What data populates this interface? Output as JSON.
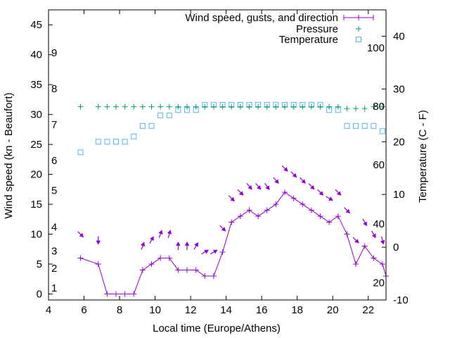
{
  "chart_data": {
    "type": "line",
    "xlabel": "Local time (Europe/Athens)",
    "ylabel": "Wind speed (kn - Beaufort)",
    "y2label": "Temperature (C - F)",
    "xlim": [
      4,
      23
    ],
    "ylim": [
      -1,
      47.5
    ],
    "y2lim": [
      -10,
      45
    ],
    "x_ticks": [
      4,
      6,
      8,
      10,
      12,
      14,
      16,
      18,
      20,
      22
    ],
    "y_ticks": [
      0,
      5,
      10,
      15,
      20,
      25,
      30,
      35,
      40,
      45
    ],
    "y2_ticks": [
      -10,
      0,
      10,
      20,
      30,
      40
    ],
    "beaufort_labels": [
      {
        "label": "1",
        "y": 1
      },
      {
        "label": "2",
        "y": 4.3
      },
      {
        "label": "3",
        "y": 7.2
      },
      {
        "label": "4",
        "y": 11.2
      },
      {
        "label": "5",
        "y": 17.3
      },
      {
        "label": "6",
        "y": 22.3
      },
      {
        "label": "7",
        "y": 28.3
      },
      {
        "label": "8",
        "y": 34.3
      },
      {
        "label": "9",
        "y": 40.3
      }
    ],
    "fahrenheit_labels": [
      {
        "label": "20",
        "y2": -6.7
      },
      {
        "label": "40",
        "y2": 4.4
      },
      {
        "label": "60",
        "y2": 15.6
      },
      {
        "label": "80",
        "y2": 26.7
      },
      {
        "label": "100",
        "y2": 37.8
      }
    ],
    "legend": {
      "position": "top-right",
      "entries": [
        "Wind speed, gusts, and direction",
        "Pressure",
        "Temperature"
      ]
    },
    "colors": {
      "wind": "#9400d3",
      "pressure": "#009e73",
      "temperature": "#56b4e9"
    },
    "wind": {
      "name": "Wind speed, gusts, and direction",
      "points": [
        {
          "x": 5.8,
          "y": 6,
          "gust": 10,
          "dir": 315
        },
        {
          "x": 6.8,
          "y": 5,
          "gust": 9,
          "dir": 360
        },
        {
          "x": 7.3,
          "y": 0
        },
        {
          "x": 7.8,
          "y": 0
        },
        {
          "x": 8.3,
          "y": 0
        },
        {
          "x": 8.8,
          "y": 0
        },
        {
          "x": 9.3,
          "y": 4,
          "gust": 8,
          "dir": 200
        },
        {
          "x": 9.8,
          "y": 5,
          "gust": 9,
          "dir": 210
        },
        {
          "x": 10.3,
          "y": 6,
          "gust": 10,
          "dir": 200
        },
        {
          "x": 10.8,
          "y": 6,
          "gust": 10,
          "dir": 195
        },
        {
          "x": 11.3,
          "y": 4,
          "gust": 8,
          "dir": 180
        },
        {
          "x": 11.8,
          "y": 4,
          "gust": 8,
          "dir": 180
        },
        {
          "x": 12.3,
          "y": 4,
          "gust": 8,
          "dir": 210
        },
        {
          "x": 12.8,
          "y": 3,
          "gust": 7,
          "dir": 240
        },
        {
          "x": 13.3,
          "y": 3,
          "gust": 7,
          "dir": 240
        },
        {
          "x": 13.8,
          "y": 7,
          "gust": 11,
          "dir": 315
        },
        {
          "x": 14.3,
          "y": 12,
          "gust": 16,
          "dir": 315
        },
        {
          "x": 14.8,
          "y": 13,
          "gust": 17,
          "dir": 315
        },
        {
          "x": 15.3,
          "y": 14,
          "gust": 18,
          "dir": 320
        },
        {
          "x": 15.8,
          "y": 13,
          "gust": 18,
          "dir": 320
        },
        {
          "x": 16.3,
          "y": 14,
          "gust": 18,
          "dir": 325
        },
        {
          "x": 16.8,
          "y": 15,
          "gust": 19,
          "dir": 320
        },
        {
          "x": 17.3,
          "y": 17,
          "gust": 21,
          "dir": 315
        },
        {
          "x": 17.8,
          "y": 16,
          "gust": 20,
          "dir": 315
        },
        {
          "x": 18.3,
          "y": 15,
          "gust": 19,
          "dir": 315
        },
        {
          "x": 18.8,
          "y": 14,
          "gust": 18,
          "dir": 315
        },
        {
          "x": 19.3,
          "y": 13,
          "gust": 17,
          "dir": 315
        },
        {
          "x": 19.8,
          "y": 12,
          "gust": 16,
          "dir": 300
        },
        {
          "x": 20.3,
          "y": 13,
          "gust": 17,
          "dir": 315
        },
        {
          "x": 20.8,
          "y": 10,
          "gust": 14,
          "dir": 315
        },
        {
          "x": 21.3,
          "y": 5,
          "gust": 9,
          "dir": 315
        },
        {
          "x": 21.8,
          "y": 8,
          "gust": 12,
          "dir": 330
        },
        {
          "x": 22.3,
          "y": 6,
          "gust": 10,
          "dir": 330
        },
        {
          "x": 22.8,
          "y": 5,
          "gust": 9,
          "dir": 345
        },
        {
          "x": 23.0,
          "y": 3
        }
      ]
    },
    "pressure": {
      "name": "Pressure",
      "x": [
        5.8,
        6.8,
        7.3,
        7.8,
        8.3,
        8.8,
        9.3,
        9.8,
        10.3,
        10.8,
        11.3,
        11.8,
        12.3,
        12.8,
        13.3,
        13.8,
        14.3,
        14.8,
        15.3,
        15.8,
        16.3,
        16.8,
        17.3,
        17.8,
        18.3,
        18.8,
        19.3,
        19.8,
        20.3,
        20.8,
        21.3,
        21.8,
        22.3,
        22.8
      ],
      "y": [
        31.3,
        31.3,
        31.3,
        31.3,
        31.3,
        31.3,
        31.3,
        31.3,
        31.3,
        31.3,
        31.3,
        31.3,
        31.3,
        31.3,
        31.3,
        31.3,
        31.3,
        31.3,
        31.3,
        31.3,
        31.3,
        31.3,
        31.3,
        31.3,
        31.3,
        31.3,
        31.3,
        31.3,
        31.3,
        31.0,
        31.0,
        31.0,
        31.3,
        31.3
      ]
    },
    "temperature": {
      "name": "Temperature",
      "x": [
        5.8,
        6.8,
        7.3,
        7.8,
        8.3,
        8.8,
        9.3,
        9.8,
        10.3,
        10.8,
        11.3,
        11.8,
        12.3,
        12.8,
        13.3,
        13.8,
        14.3,
        14.8,
        15.3,
        15.8,
        16.3,
        16.8,
        17.3,
        17.8,
        18.3,
        18.8,
        19.3,
        19.8,
        20.3,
        20.8,
        21.3,
        21.8,
        22.3,
        22.8
      ],
      "y": [
        18,
        20,
        20,
        20,
        20,
        21,
        23,
        23,
        25,
        25,
        26,
        26,
        26,
        27,
        27,
        27,
        27,
        27,
        27,
        27,
        27,
        27,
        27,
        27,
        27,
        27,
        27,
        26,
        26,
        23,
        23,
        23,
        23,
        22
      ]
    }
  }
}
